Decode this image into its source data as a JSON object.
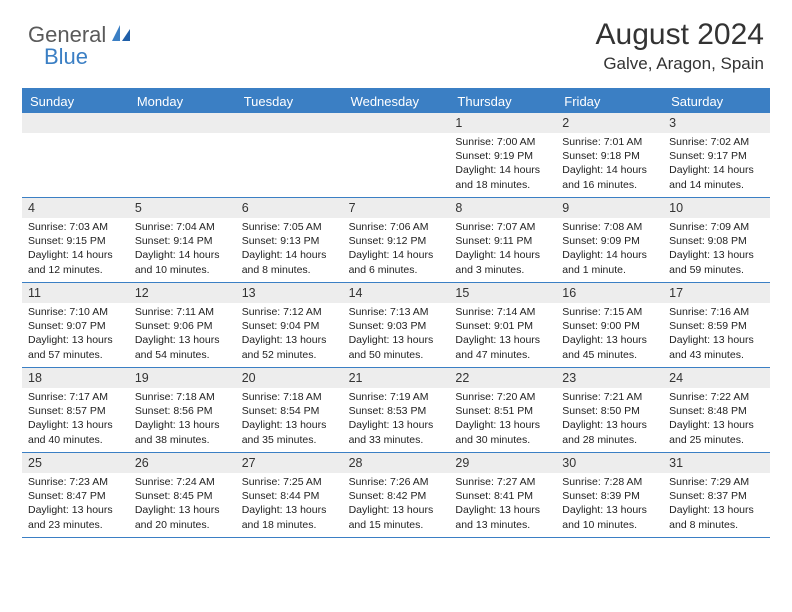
{
  "logo": {
    "text1": "General",
    "text2": "Blue"
  },
  "title": "August 2024",
  "location": "Galve, Aragon, Spain",
  "colors": {
    "accent": "#3b7fc4",
    "header_text": "#ffffff",
    "numrow_bg": "#ededed",
    "body_text": "#222222",
    "page_bg": "#ffffff",
    "logo_gray": "#5a5a5a"
  },
  "day_names": [
    "Sunday",
    "Monday",
    "Tuesday",
    "Wednesday",
    "Thursday",
    "Friday",
    "Saturday"
  ],
  "weeks": [
    [
      {
        "empty": true
      },
      {
        "empty": true
      },
      {
        "empty": true
      },
      {
        "empty": true
      },
      {
        "n": "1",
        "sunrise": "7:00 AM",
        "sunset": "9:19 PM",
        "daylight": "14 hours and 18 minutes."
      },
      {
        "n": "2",
        "sunrise": "7:01 AM",
        "sunset": "9:18 PM",
        "daylight": "14 hours and 16 minutes."
      },
      {
        "n": "3",
        "sunrise": "7:02 AM",
        "sunset": "9:17 PM",
        "daylight": "14 hours and 14 minutes."
      }
    ],
    [
      {
        "n": "4",
        "sunrise": "7:03 AM",
        "sunset": "9:15 PM",
        "daylight": "14 hours and 12 minutes."
      },
      {
        "n": "5",
        "sunrise": "7:04 AM",
        "sunset": "9:14 PM",
        "daylight": "14 hours and 10 minutes."
      },
      {
        "n": "6",
        "sunrise": "7:05 AM",
        "sunset": "9:13 PM",
        "daylight": "14 hours and 8 minutes."
      },
      {
        "n": "7",
        "sunrise": "7:06 AM",
        "sunset": "9:12 PM",
        "daylight": "14 hours and 6 minutes."
      },
      {
        "n": "8",
        "sunrise": "7:07 AM",
        "sunset": "9:11 PM",
        "daylight": "14 hours and 3 minutes."
      },
      {
        "n": "9",
        "sunrise": "7:08 AM",
        "sunset": "9:09 PM",
        "daylight": "14 hours and 1 minute."
      },
      {
        "n": "10",
        "sunrise": "7:09 AM",
        "sunset": "9:08 PM",
        "daylight": "13 hours and 59 minutes."
      }
    ],
    [
      {
        "n": "11",
        "sunrise": "7:10 AM",
        "sunset": "9:07 PM",
        "daylight": "13 hours and 57 minutes."
      },
      {
        "n": "12",
        "sunrise": "7:11 AM",
        "sunset": "9:06 PM",
        "daylight": "13 hours and 54 minutes."
      },
      {
        "n": "13",
        "sunrise": "7:12 AM",
        "sunset": "9:04 PM",
        "daylight": "13 hours and 52 minutes."
      },
      {
        "n": "14",
        "sunrise": "7:13 AM",
        "sunset": "9:03 PM",
        "daylight": "13 hours and 50 minutes."
      },
      {
        "n": "15",
        "sunrise": "7:14 AM",
        "sunset": "9:01 PM",
        "daylight": "13 hours and 47 minutes."
      },
      {
        "n": "16",
        "sunrise": "7:15 AM",
        "sunset": "9:00 PM",
        "daylight": "13 hours and 45 minutes."
      },
      {
        "n": "17",
        "sunrise": "7:16 AM",
        "sunset": "8:59 PM",
        "daylight": "13 hours and 43 minutes."
      }
    ],
    [
      {
        "n": "18",
        "sunrise": "7:17 AM",
        "sunset": "8:57 PM",
        "daylight": "13 hours and 40 minutes."
      },
      {
        "n": "19",
        "sunrise": "7:18 AM",
        "sunset": "8:56 PM",
        "daylight": "13 hours and 38 minutes."
      },
      {
        "n": "20",
        "sunrise": "7:18 AM",
        "sunset": "8:54 PM",
        "daylight": "13 hours and 35 minutes."
      },
      {
        "n": "21",
        "sunrise": "7:19 AM",
        "sunset": "8:53 PM",
        "daylight": "13 hours and 33 minutes."
      },
      {
        "n": "22",
        "sunrise": "7:20 AM",
        "sunset": "8:51 PM",
        "daylight": "13 hours and 30 minutes."
      },
      {
        "n": "23",
        "sunrise": "7:21 AM",
        "sunset": "8:50 PM",
        "daylight": "13 hours and 28 minutes."
      },
      {
        "n": "24",
        "sunrise": "7:22 AM",
        "sunset": "8:48 PM",
        "daylight": "13 hours and 25 minutes."
      }
    ],
    [
      {
        "n": "25",
        "sunrise": "7:23 AM",
        "sunset": "8:47 PM",
        "daylight": "13 hours and 23 minutes."
      },
      {
        "n": "26",
        "sunrise": "7:24 AM",
        "sunset": "8:45 PM",
        "daylight": "13 hours and 20 minutes."
      },
      {
        "n": "27",
        "sunrise": "7:25 AM",
        "sunset": "8:44 PM",
        "daylight": "13 hours and 18 minutes."
      },
      {
        "n": "28",
        "sunrise": "7:26 AM",
        "sunset": "8:42 PM",
        "daylight": "13 hours and 15 minutes."
      },
      {
        "n": "29",
        "sunrise": "7:27 AM",
        "sunset": "8:41 PM",
        "daylight": "13 hours and 13 minutes."
      },
      {
        "n": "30",
        "sunrise": "7:28 AM",
        "sunset": "8:39 PM",
        "daylight": "13 hours and 10 minutes."
      },
      {
        "n": "31",
        "sunrise": "7:29 AM",
        "sunset": "8:37 PM",
        "daylight": "13 hours and 8 minutes."
      }
    ]
  ],
  "labels": {
    "sunrise": "Sunrise:",
    "sunset": "Sunset:",
    "daylight": "Daylight:"
  }
}
